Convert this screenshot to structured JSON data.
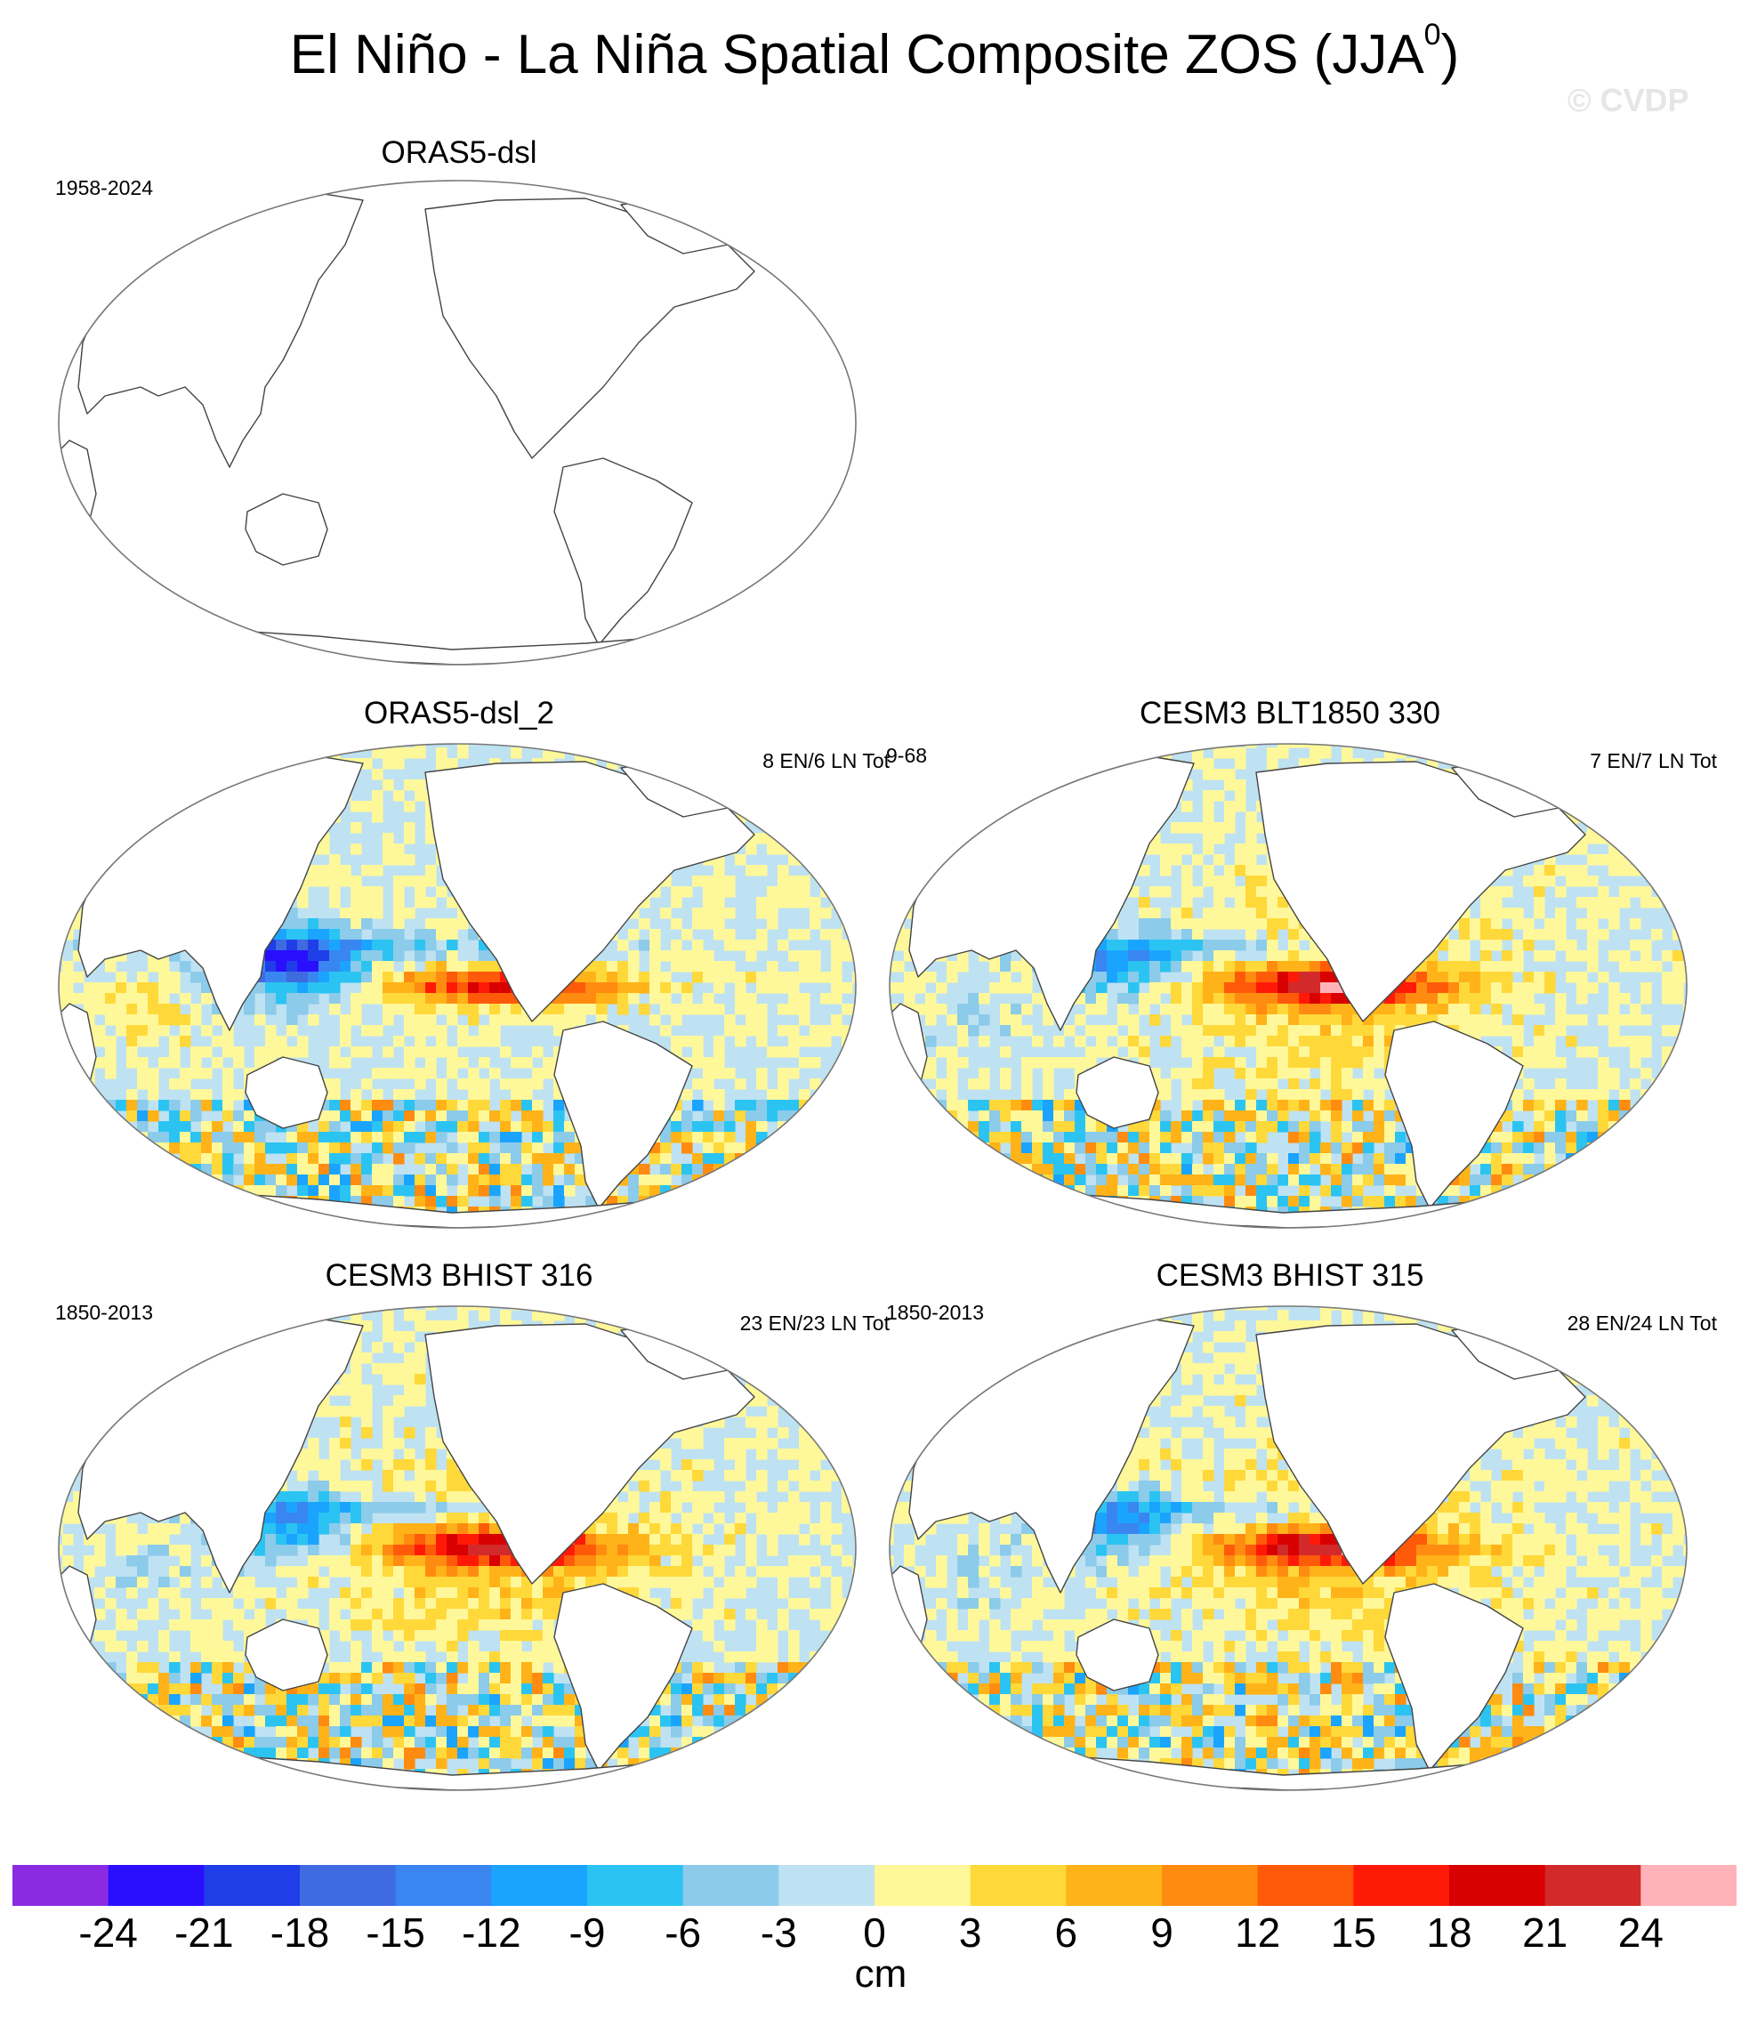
{
  "title": {
    "main": "El Niño - La Niña Spatial Composite ZOS (JJA",
    "superscript": "0",
    "close": ")"
  },
  "watermark": "© CVDP",
  "panels": [
    {
      "title": "ORAS5-dsl",
      "period": "1958-2024",
      "counts": "",
      "filled": false
    },
    {
      "title": "ORAS5-dsl_2",
      "period": "",
      "counts": "8 EN/6 LN Tot",
      "extra_label": "9-68",
      "filled": true,
      "style": "obs"
    },
    {
      "title": "CESM3 BLT1850 330",
      "period": "",
      "counts": "7 EN/7 LN Tot",
      "filled": true,
      "style": "blt"
    },
    {
      "title": "CESM3 BHIST 316",
      "period": "1850-2013",
      "counts": "23 EN/23 LN Tot",
      "filled": true,
      "style": "hist"
    },
    {
      "title": "CESM3 BHIST 315",
      "period": "1850-2013",
      "counts": "28 EN/24 LN Tot",
      "filled": true,
      "style": "hist2"
    }
  ],
  "colorbar": {
    "labels": [
      "-24",
      "-21",
      "-18",
      "-15",
      "-12",
      "-9",
      "-6",
      "-3",
      "0",
      "3",
      "6",
      "9",
      "12",
      "15",
      "18",
      "21",
      "24"
    ],
    "colors": [
      "#8a2be2",
      "#2a0fff",
      "#1f3ee8",
      "#3f6be0",
      "#3a86f0",
      "#1aa4ff",
      "#2bc4f2",
      "#8ccbea",
      "#bfe2f2",
      "#fff89a",
      "#ffd83a",
      "#ffb318",
      "#ff8c10",
      "#ff5a0a",
      "#ff1a08",
      "#d80000",
      "#d22a2a",
      "#ffb3b8"
    ],
    "units": "cm"
  }
}
